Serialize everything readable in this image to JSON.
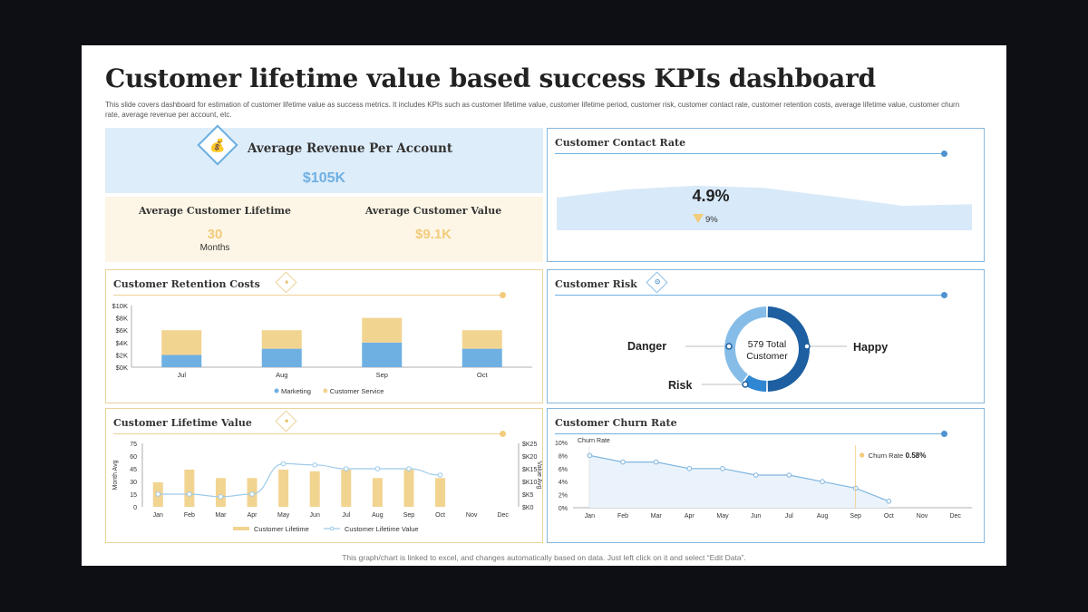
{
  "title": "Customer lifetime value based success KPIs dashboard",
  "description": "This slide covers dashboard for estimation of customer lifetime value as success metrics. It includes KPIs such as customer lifetime value, customer lifetime period, customer risk, customer contact rate, customer retention costs, average lifetime value, customer churn rate, average revenue per account, etc.",
  "footer": "This graph/chart is linked to excel, and changes automatically based on data. Just left click on it and select “Edit Data”.",
  "colors": {
    "blue": "#6fb0e2",
    "gold": "#f2cb7c",
    "dark_blue": "#1d5fa0"
  },
  "arpa": {
    "label": "Average Revenue Per Account",
    "value": "$105K",
    "icon": "money-bag-icon"
  },
  "lifetime": {
    "label": "Average Customer Lifetime",
    "value": "30",
    "unit": "Months"
  },
  "customer_value": {
    "label": "Average Customer Value",
    "value": "$9.1K"
  },
  "contact_rate": {
    "title": "Customer Contact Rate",
    "value": "4.9%",
    "change": "9%",
    "change_direction": "down"
  },
  "retention": {
    "title": "Customer Retention Costs",
    "icon": "handshake-icon"
  },
  "risk": {
    "title": "Customer Risk",
    "icon": "gear-icon",
    "center_value": "579 Total",
    "center_label": "Customer",
    "labels": {
      "danger": "Danger",
      "happy": "Happy",
      "risk": "Risk"
    }
  },
  "clv": {
    "title": "Customer Lifetime Value",
    "icon": "people-icon"
  },
  "churn": {
    "title": "Customer Churn Rate",
    "annotation_label": "Churn Rate",
    "annotation_value": "0.58%"
  },
  "chart_data": [
    {
      "id": "retention",
      "type": "bar",
      "stacked": true,
      "categories": [
        "Jul",
        "Aug",
        "Sep",
        "Oct"
      ],
      "series": [
        {
          "name": "Marketing",
          "values": [
            2000,
            3000,
            4000,
            3000
          ],
          "color": "#6fb0e2"
        },
        {
          "name": "Customer Service",
          "values": [
            4000,
            3000,
            4000,
            3000
          ],
          "color": "#f2d491"
        }
      ],
      "ylim": [
        0,
        10000
      ],
      "ytick_labels": [
        "$0K",
        "$2K",
        "$4K",
        "$6K",
        "$8K",
        "$10K"
      ],
      "grid": false,
      "legend": "bottom"
    },
    {
      "id": "clv",
      "type": "bar+line",
      "categories": [
        "Jan",
        "Feb",
        "Mar",
        "Apr",
        "May",
        "Jun",
        "Jul",
        "Aug",
        "Sep",
        "Oct",
        "Nov",
        "Dec"
      ],
      "series": [
        {
          "name": "Customer Lifetime",
          "type": "bar",
          "axis": "left",
          "values": [
            29,
            44,
            34,
            34,
            44,
            42,
            44,
            34,
            44,
            34,
            null,
            null
          ],
          "color": "#f2d491"
        },
        {
          "name": "Customer Lifetime Value",
          "type": "line",
          "axis": "right",
          "values": [
            5,
            5,
            4,
            5,
            17,
            16.5,
            15,
            15,
            15,
            12.5,
            null,
            null
          ],
          "color": "#9ccbea"
        }
      ],
      "ylim_left": [
        0,
        75
      ],
      "ytick_labels_left": [
        "0",
        "15",
        "30",
        "45",
        "60",
        "75"
      ],
      "ylabel_left": "Month Avg",
      "ylim_right": [
        0,
        25
      ],
      "ytick_labels_right": [
        "$K0",
        "$K5",
        "$K10",
        "$K15",
        "$K20",
        "$K25"
      ],
      "ylabel_right": "Value Avg",
      "legend": "bottom"
    },
    {
      "id": "churn",
      "type": "line",
      "categories": [
        "Jan",
        "Feb",
        "Mar",
        "Apr",
        "May",
        "Jun",
        "Jul",
        "Aug",
        "Sep",
        "Oct",
        "Nov",
        "Dec"
      ],
      "series": [
        {
          "name": "Churn Rate",
          "values": [
            8,
            7,
            7,
            6,
            6,
            5,
            5,
            4,
            3,
            1,
            null,
            null
          ],
          "color": "#7fb5df"
        }
      ],
      "ylim": [
        0,
        10
      ],
      "ytick_labels": [
        "0%",
        "2%",
        "4%",
        "6%",
        "8%",
        "10%"
      ],
      "marker_at": "Sep"
    },
    {
      "id": "risk",
      "type": "pie",
      "donut": true,
      "total": 579,
      "slices": [
        {
          "name": "Happy",
          "share": 0.5,
          "color": "#1d5fa0"
        },
        {
          "name": "Risk",
          "share": 0.1,
          "color": "#2f86d2"
        },
        {
          "name": "Danger",
          "share": 0.4,
          "color": "#86bde8"
        }
      ]
    },
    {
      "id": "contact_rate",
      "type": "area",
      "values": [
        6.0,
        7.5,
        8.2,
        7.8,
        6.2,
        4.5,
        4.8
      ],
      "ylim": [
        0,
        10
      ],
      "color": "#d8eaf9"
    }
  ]
}
